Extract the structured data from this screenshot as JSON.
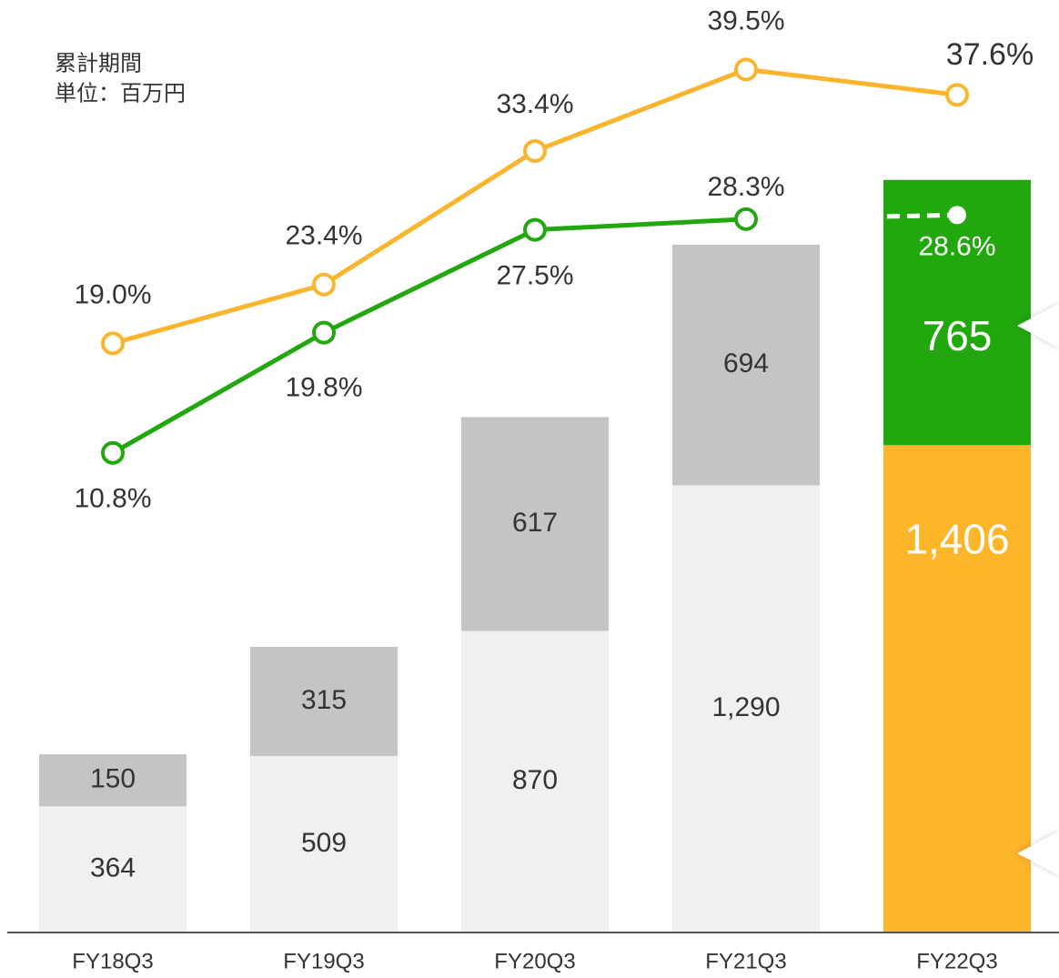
{
  "chart_data": {
    "type": "bar",
    "stacked": true,
    "notes": [
      "累計期間",
      "単位：百万円"
    ],
    "categories": [
      "FY18Q3",
      "FY19Q3",
      "FY20Q3",
      "FY21Q3",
      "FY22Q3"
    ],
    "series": [
      {
        "values": [
          364,
          509,
          870,
          1290,
          1406
        ],
        "value_labels": [
          "364",
          "509",
          "870",
          "1,290",
          "1,406"
        ],
        "colors": [
          "#f0f0f0",
          "#f0f0f0",
          "#f0f0f0",
          "#f0f0f0",
          "#fdb52a"
        ]
      },
      {
        "values": [
          150,
          315,
          617,
          694,
          765
        ],
        "colors": [
          "#c4c4c4",
          "#c4c4c4",
          "#c4c4c4",
          "#c4c4c4",
          "#22a70f"
        ]
      },
      {
        "type": "line",
        "axis": "y2",
        "color": "#fbb52d",
        "values": [
          19.0,
          23.4,
          33.4,
          39.5,
          37.6
        ],
        "value_labels": [
          "19.0%",
          "23.4%",
          "33.4%",
          "39.5%",
          "37.6%"
        ]
      },
      {
        "type": "line",
        "axis": "y2",
        "color": "#22a70f",
        "last_segment": "dashed",
        "values": [
          10.8,
          19.8,
          27.5,
          28.3,
          28.6
        ],
        "value_labels": [
          "10.8%",
          "19.8%",
          "27.5%",
          "28.3%",
          "28.6%"
        ]
      }
    ],
    "ylim": [
      0,
      2690
    ],
    "y2lim": [
      -25.1,
      44.7
    ]
  }
}
